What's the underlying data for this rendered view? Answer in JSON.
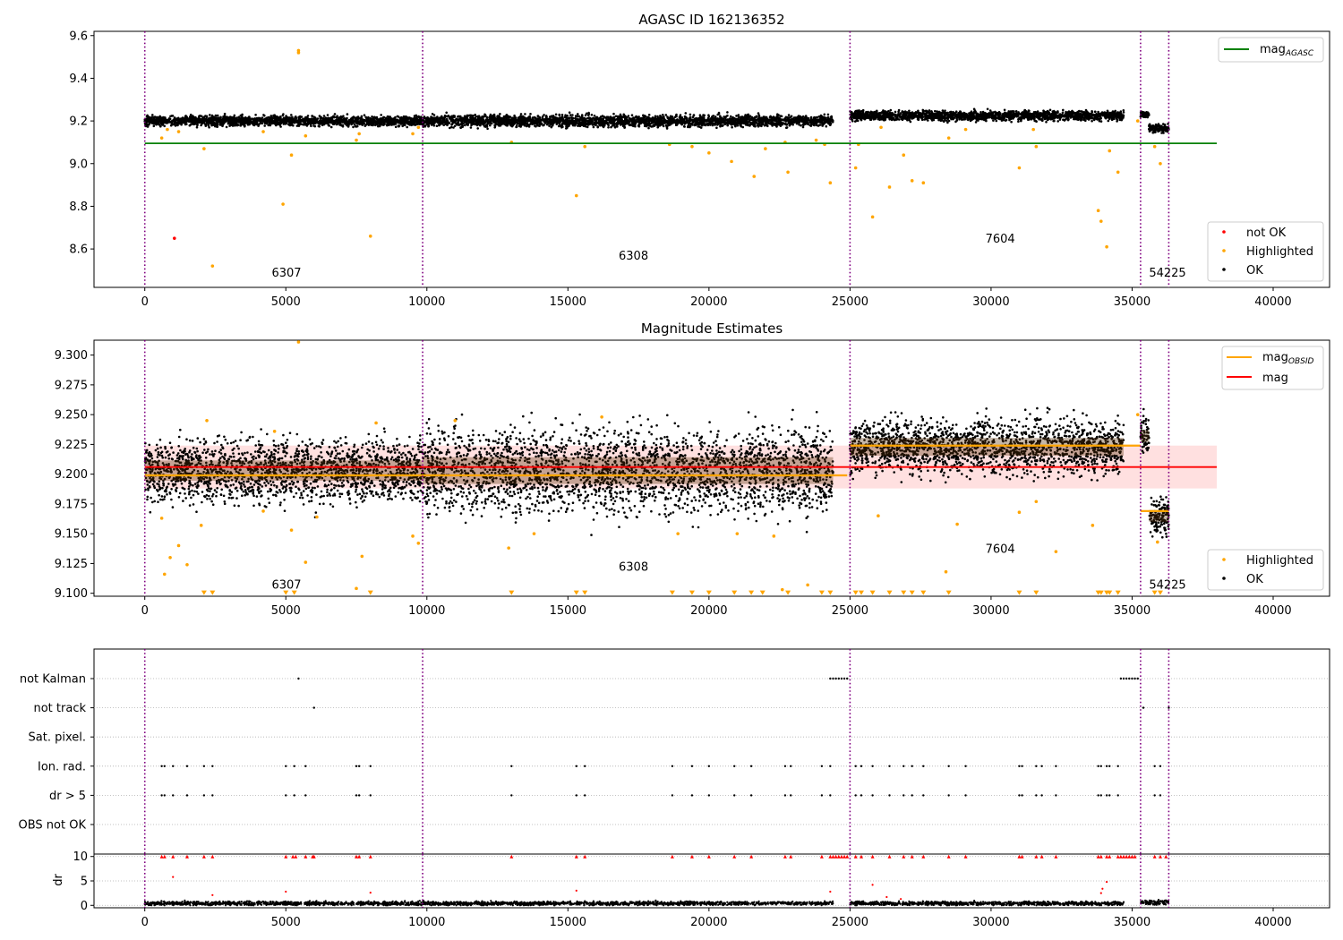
{
  "chart_data": [
    {
      "type": "scatter",
      "title": "AGASC ID 162136352",
      "xlabel": "",
      "ylabel": "",
      "xlim": [
        -1800,
        42000
      ],
      "ylim": [
        8.42,
        9.62
      ],
      "yticks": [
        8.6,
        8.8,
        9.0,
        9.2,
        9.4,
        9.6
      ],
      "ytick_labels": [
        "8.6",
        "8.8",
        "9.0",
        "9.2",
        "9.4",
        "9.6"
      ],
      "xticks": [
        0,
        5000,
        10000,
        15000,
        20000,
        25000,
        30000,
        35000,
        40000
      ],
      "xtick_labels": [
        "0",
        "5000",
        "10000",
        "15000",
        "20000",
        "25000",
        "30000",
        "35000",
        "40000"
      ],
      "obsid_boundaries": [
        0,
        9850,
        25000,
        35300,
        36300
      ],
      "obsid_labels": [
        {
          "text": "6307",
          "x": 4500,
          "y": 8.47
        },
        {
          "text": "6308",
          "x": 16800,
          "y": 8.55
        },
        {
          "text": "7604",
          "x": 29800,
          "y": 8.63
        },
        {
          "text": "54225",
          "x": 35600,
          "y": 8.47
        }
      ],
      "mag_agasc": 9.095,
      "legend_upper": {
        "items": [
          "mag",
          "AGASC"
        ]
      },
      "legend_lower": {
        "items": [
          "not OK",
          "Highlighted",
          "OK"
        ]
      },
      "series": [
        {
          "name": "OK",
          "color": "#000000",
          "segments": [
            {
              "x0": 0,
              "x1": 9850,
              "center": 9.2,
              "spread": 0.03
            },
            {
              "x0": 9850,
              "x1": 24400,
              "center": 9.2,
              "spread": 0.035
            },
            {
              "x0": 25000,
              "x1": 34700,
              "center": 9.225,
              "spread": 0.03
            },
            {
              "x0": 35300,
              "x1": 35600,
              "center": 9.232,
              "spread": 0.02
            },
            {
              "x0": 35600,
              "x1": 36300,
              "center": 9.165,
              "spread": 0.025
            }
          ]
        },
        {
          "name": "Highlighted",
          "color": "#ffa500",
          "points": [
            [
              600,
              9.12
            ],
            [
              800,
              9.16
            ],
            [
              1200,
              9.15
            ],
            [
              2100,
              9.07
            ],
            [
              2400,
              8.52
            ],
            [
              4200,
              9.15
            ],
            [
              4900,
              8.81
            ],
            [
              5200,
              9.04
            ],
            [
              5450,
              9.52
            ],
            [
              5450,
              9.53
            ],
            [
              5700,
              9.13
            ],
            [
              7500,
              9.11
            ],
            [
              7600,
              9.14
            ],
            [
              8000,
              8.66
            ],
            [
              9500,
              9.14
            ],
            [
              9700,
              9.17
            ],
            [
              13000,
              9.1
            ],
            [
              15300,
              8.85
            ],
            [
              15600,
              9.08
            ],
            [
              18600,
              9.09
            ],
            [
              19400,
              9.08
            ],
            [
              20000,
              9.05
            ],
            [
              20800,
              9.01
            ],
            [
              21600,
              8.94
            ],
            [
              22000,
              9.07
            ],
            [
              22700,
              9.1
            ],
            [
              22800,
              8.96
            ],
            [
              23800,
              9.11
            ],
            [
              24100,
              9.09
            ],
            [
              24300,
              8.91
            ],
            [
              25200,
              8.98
            ],
            [
              25300,
              9.09
            ],
            [
              25800,
              8.75
            ],
            [
              26100,
              9.17
            ],
            [
              26400,
              8.89
            ],
            [
              26900,
              9.04
            ],
            [
              27200,
              8.92
            ],
            [
              27600,
              8.91
            ],
            [
              28500,
              9.12
            ],
            [
              29100,
              9.16
            ],
            [
              31000,
              8.98
            ],
            [
              31500,
              9.16
            ],
            [
              31600,
              9.08
            ],
            [
              33800,
              8.78
            ],
            [
              33900,
              8.73
            ],
            [
              34100,
              8.61
            ],
            [
              34200,
              9.06
            ],
            [
              34500,
              8.96
            ],
            [
              35200,
              9.2
            ],
            [
              35800,
              9.08
            ],
            [
              36000,
              9.0
            ]
          ]
        },
        {
          "name": "not OK",
          "color": "#ff0000",
          "points": [
            [
              1050,
              8.65
            ]
          ]
        }
      ]
    },
    {
      "type": "scatter",
      "title": "Magnitude Estimates",
      "xlabel": "",
      "ylabel": "",
      "xlim": [
        -1800,
        42000
      ],
      "ylim": [
        9.0975,
        9.3125
      ],
      "yticks": [
        9.1,
        9.125,
        9.15,
        9.175,
        9.2,
        9.225,
        9.25,
        9.275,
        9.3
      ],
      "ytick_labels": [
        "9.100",
        "9.125",
        "9.150",
        "9.175",
        "9.200",
        "9.225",
        "9.250",
        "9.275",
        "9.300"
      ],
      "xticks": [
        0,
        5000,
        10000,
        15000,
        20000,
        25000,
        30000,
        35000,
        40000
      ],
      "xtick_labels": [
        "0",
        "5000",
        "10000",
        "15000",
        "20000",
        "25000",
        "30000",
        "35000",
        "40000"
      ],
      "obsid_boundaries": [
        0,
        9850,
        25000,
        35300,
        36300
      ],
      "obsid_labels": [
        {
          "text": "6307",
          "x": 4500,
          "y": 9.104
        },
        {
          "text": "6308",
          "x": 16800,
          "y": 9.119
        },
        {
          "text": "7604",
          "x": 29800,
          "y": 9.134
        },
        {
          "text": "54225",
          "x": 35600,
          "y": 9.104
        }
      ],
      "mag": 9.206,
      "mag_band": [
        9.188,
        9.224
      ],
      "mag_obsid": [
        {
          "x0": 0,
          "x1": 24900,
          "y": 9.199
        },
        {
          "x0": 25000,
          "x1": 35300,
          "y": 9.224
        },
        {
          "x0": 35300,
          "x1": 36300,
          "y": 9.169
        }
      ],
      "legend_upper": {
        "items": [
          "mag",
          "OBSID",
          "mag"
        ]
      },
      "legend_lower": {
        "items": [
          "Highlighted",
          "OK"
        ]
      },
      "series": [
        {
          "name": "OK",
          "color": "#000000",
          "segments": [
            {
              "x0": 0,
              "x1": 9850,
              "center": 9.203,
              "spread": 0.034
            },
            {
              "x0": 9850,
              "x1": 24400,
              "center": 9.203,
              "spread": 0.045
            },
            {
              "x0": 25000,
              "x1": 34700,
              "center": 9.223,
              "spread": 0.03
            },
            {
              "x0": 35300,
              "x1": 35600,
              "center": 9.232,
              "spread": 0.02
            },
            {
              "x0": 35600,
              "x1": 36300,
              "center": 9.165,
              "spread": 0.02
            }
          ]
        },
        {
          "name": "Highlighted",
          "color": "#ffa500",
          "points": [
            [
              600,
              9.163
            ],
            [
              700,
              9.116
            ],
            [
              900,
              9.13
            ],
            [
              1200,
              9.14
            ],
            [
              1500,
              9.124
            ],
            [
              2000,
              9.157
            ],
            [
              2200,
              9.245
            ],
            [
              4200,
              9.169
            ],
            [
              4600,
              9.236
            ],
            [
              5200,
              9.153
            ],
            [
              5450,
              9.311
            ],
            [
              5700,
              9.126
            ],
            [
              6100,
              9.164
            ],
            [
              7500,
              9.104
            ],
            [
              7700,
              9.131
            ],
            [
              8200,
              9.243
            ],
            [
              9500,
              9.148
            ],
            [
              9700,
              9.142
            ],
            [
              11000,
              9.245
            ],
            [
              12900,
              9.138
            ],
            [
              13800,
              9.15
            ],
            [
              16200,
              9.248
            ],
            [
              18900,
              9.15
            ],
            [
              21000,
              9.15
            ],
            [
              22300,
              9.148
            ],
            [
              22600,
              9.103
            ],
            [
              23500,
              9.107
            ],
            [
              26000,
              9.165
            ],
            [
              28400,
              9.118
            ],
            [
              28800,
              9.158
            ],
            [
              31000,
              9.168
            ],
            [
              31600,
              9.177
            ],
            [
              32300,
              9.135
            ],
            [
              33600,
              9.157
            ],
            [
              35200,
              9.25
            ],
            [
              35900,
              9.143
            ]
          ]
        },
        {
          "name": "Highlighted (below range)",
          "color": "#ffa500",
          "marker": "triangle-down",
          "xs": [
            2100,
            2400,
            5000,
            5300,
            8000,
            13000,
            15300,
            15600,
            18700,
            19400,
            20000,
            20900,
            21500,
            21900,
            22800,
            24000,
            24300,
            25200,
            25400,
            25800,
            26400,
            26900,
            27200,
            27600,
            28500,
            31000,
            31600,
            33800,
            33900,
            34100,
            34200,
            34500,
            35800,
            36000
          ]
        }
      ]
    },
    {
      "type": "scatter",
      "title": "",
      "xlabel": "",
      "ylabel": "dr",
      "xlim": [
        -1800,
        42000
      ],
      "xticks": [
        0,
        5000,
        10000,
        15000,
        20000,
        25000,
        30000,
        35000,
        40000
      ],
      "xtick_labels": [
        "0",
        "5000",
        "10000",
        "15000",
        "20000",
        "25000",
        "30000",
        "35000",
        "40000"
      ],
      "obsid_boundaries": [
        0,
        9850,
        25000,
        35300,
        36300
      ],
      "flag_rows": [
        "not Kalman",
        "not track",
        "Sat. pixel.",
        "Ion. rad.",
        "dr > 5",
        "OBS not OK"
      ],
      "flags": {
        "not Kalman": [
          5450,
          24300,
          24400,
          24500,
          24600,
          24700,
          24800,
          24900,
          34600,
          34700,
          34800,
          34900,
          35000,
          35100,
          35200
        ],
        "not track": [
          6000,
          35400,
          36300
        ],
        "Sat. pixel.": [],
        "Ion. rad.": [
          600,
          700,
          1000,
          1500,
          2100,
          2400,
          5000,
          5300,
          5700,
          7500,
          7600,
          8000,
          13000,
          15300,
          15600,
          18700,
          19400,
          20000,
          20900,
          21500,
          22700,
          22900,
          24000,
          24300,
          25200,
          25400,
          25800,
          26400,
          26900,
          27200,
          27600,
          28500,
          29100,
          31000,
          31100,
          31600,
          31800,
          32300,
          33800,
          33900,
          34100,
          34200,
          34500,
          35800,
          36000
        ],
        "dr > 5": [
          600,
          700,
          1000,
          1500,
          2100,
          2400,
          5000,
          5300,
          5700,
          7500,
          7600,
          8000,
          13000,
          15300,
          15600,
          18700,
          19400,
          20000,
          20900,
          21500,
          22700,
          22900,
          24000,
          24300,
          25200,
          25400,
          25800,
          26400,
          26900,
          27200,
          27600,
          28500,
          29100,
          31000,
          31100,
          31600,
          31800,
          32300,
          33800,
          33900,
          34100,
          34200,
          34500,
          35800,
          36000
        ],
        "OBS not OK": []
      },
      "dr_ylim": [
        -0.5,
        10.5
      ],
      "dr_yticks": [
        0,
        5,
        10
      ],
      "dr_ytick_labels": [
        "0",
        "5",
        "10"
      ],
      "dr_clip": 10,
      "dr_ok_segments": [
        {
          "x0": 0,
          "x1": 24400,
          "center": 0.4,
          "spread": 0.4
        },
        {
          "x0": 25000,
          "x1": 34700,
          "center": 0.4,
          "spread": 0.4
        },
        {
          "x0": 35300,
          "x1": 36300,
          "center": 0.6,
          "spread": 0.5
        }
      ],
      "dr_outliers": [
        [
          1000,
          5.8
        ],
        [
          2400,
          2.1
        ],
        [
          5000,
          2.8
        ],
        [
          8000,
          2.6
        ],
        [
          15300,
          3.0
        ],
        [
          24300,
          2.8
        ],
        [
          25800,
          4.2
        ],
        [
          26300,
          1.7
        ],
        [
          26800,
          1.3
        ],
        [
          33900,
          2.5
        ],
        [
          33950,
          3.4
        ],
        [
          34100,
          4.8
        ]
      ],
      "dr_clipped": [
        600,
        700,
        1000,
        1500,
        2100,
        2400,
        5000,
        5250,
        5350,
        5700,
        5950,
        6000,
        7500,
        7600,
        8000,
        13000,
        15300,
        15600,
        18700,
        19400,
        20000,
        20900,
        21500,
        22700,
        22900,
        24000,
        24300,
        24400,
        24500,
        24600,
        24700,
        24800,
        24900,
        25200,
        25400,
        25800,
        26400,
        26900,
        27200,
        27600,
        28500,
        29100,
        31000,
        31100,
        31600,
        31800,
        32300,
        33800,
        33900,
        34100,
        34200,
        34500,
        34600,
        34700,
        34800,
        34900,
        35000,
        35100,
        35800,
        36000,
        36200
      ]
    }
  ]
}
